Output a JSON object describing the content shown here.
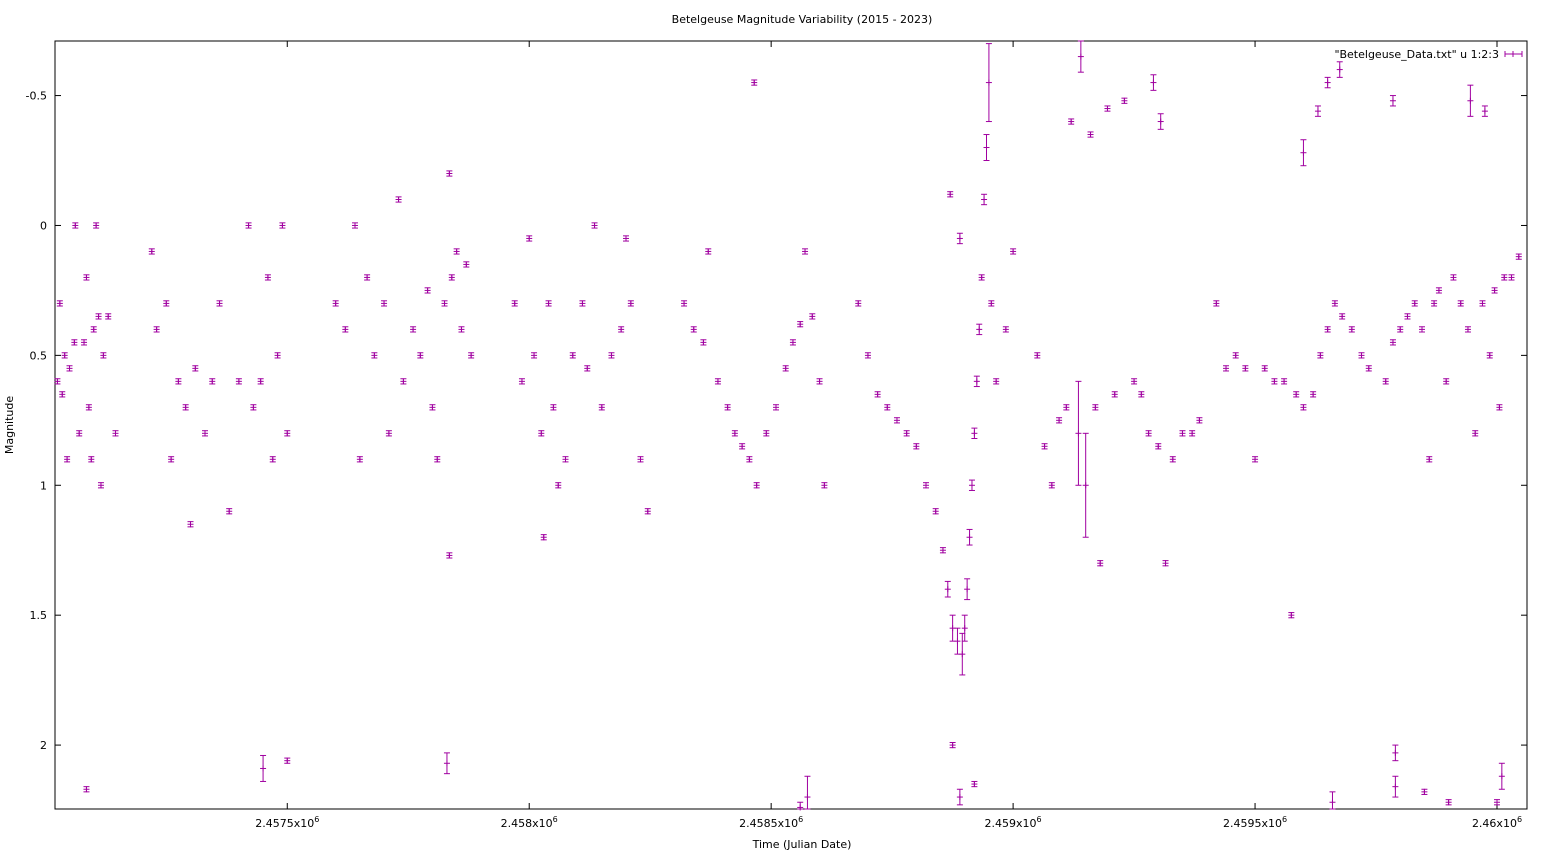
{
  "chart_data": {
    "type": "scatter",
    "title": "Betelgeuse Magnitude Variability (2015 - 2023)",
    "xlabel": "Time (Julian Date)",
    "ylabel": "Magnitude",
    "xlim": [
      2457020,
      2460062
    ],
    "ylim": [
      2.246,
      -0.71
    ],
    "y_reversed": true,
    "grid": false,
    "legend_position": "top-right",
    "color": "#a000a0",
    "x_ticks": [
      {
        "value": 2457500,
        "label": "2.4575x10",
        "exp": "6"
      },
      {
        "value": 2458000,
        "label": "2.458x10",
        "exp": "6"
      },
      {
        "value": 2458500,
        "label": "2.4585x10",
        "exp": "6"
      },
      {
        "value": 2459000,
        "label": "2.459x10",
        "exp": "6"
      },
      {
        "value": 2459500,
        "label": "2.4595x10",
        "exp": "6"
      },
      {
        "value": 2460000,
        "label": "2.46x10",
        "exp": "6"
      }
    ],
    "y_ticks": [
      {
        "value": -0.5,
        "label": "-0.5"
      },
      {
        "value": 0,
        "label": "0"
      },
      {
        "value": 0.5,
        "label": "0.5"
      },
      {
        "value": 1,
        "label": "1"
      },
      {
        "value": 1.5,
        "label": "1.5"
      },
      {
        "value": 2,
        "label": "2"
      }
    ],
    "series": [
      {
        "name": "\"Betelgeuse_Data.txt\" u 1:2:3",
        "points": [
          [
            2457025,
            0.6,
            0.01
          ],
          [
            2457030,
            0.3,
            0.01
          ],
          [
            2457035,
            0.65,
            0.01
          ],
          [
            2457040,
            0.5,
            0.01
          ],
          [
            2457045,
            0.9,
            0.01
          ],
          [
            2457050,
            0.55,
            0.01
          ],
          [
            2457060,
            0.45,
            0.01
          ],
          [
            2457062,
            0.0,
            0.01
          ],
          [
            2457070,
            0.8,
            0.01
          ],
          [
            2457080,
            0.45,
            0.01
          ],
          [
            2457085,
            0.2,
            0.01
          ],
          [
            2457090,
            0.7,
            0.01
          ],
          [
            2457095,
            0.9,
            0.01
          ],
          [
            2457100,
            0.4,
            0.01
          ],
          [
            2457105,
            0.0,
            0.01
          ],
          [
            2457110,
            0.35,
            0.01
          ],
          [
            2457115,
            1.0,
            0.01
          ],
          [
            2457120,
            0.5,
            0.01
          ],
          [
            2457130,
            0.35,
            0.01
          ],
          [
            2457145,
            0.8,
            0.01
          ],
          [
            2457085,
            2.17,
            0.01
          ],
          [
            2457220,
            0.1,
            0.01
          ],
          [
            2457230,
            0.4,
            0.01
          ],
          [
            2457250,
            0.3,
            0.01
          ],
          [
            2457260,
            0.9,
            0.01
          ],
          [
            2457275,
            0.6,
            0.01
          ],
          [
            2457290,
            0.7,
            0.01
          ],
          [
            2457300,
            1.15,
            0.01
          ],
          [
            2457310,
            0.55,
            0.01
          ],
          [
            2457330,
            0.8,
            0.01
          ],
          [
            2457345,
            0.6,
            0.01
          ],
          [
            2457360,
            0.3,
            0.01
          ],
          [
            2457380,
            1.1,
            0.01
          ],
          [
            2457400,
            0.6,
            0.01
          ],
          [
            2457420,
            0.0,
            0.01
          ],
          [
            2457430,
            0.7,
            0.01
          ],
          [
            2457445,
            0.6,
            0.01
          ],
          [
            2457460,
            0.2,
            0.01
          ],
          [
            2457470,
            0.9,
            0.01
          ],
          [
            2457480,
            0.5,
            0.01
          ],
          [
            2457490,
            0.0,
            0.01
          ],
          [
            2457500,
            0.8,
            0.01
          ],
          [
            2457450,
            2.09,
            0.05
          ],
          [
            2457500,
            2.06,
            0.01
          ],
          [
            2457600,
            0.3,
            0.01
          ],
          [
            2457620,
            0.4,
            0.01
          ],
          [
            2457640,
            0.0,
            0.01
          ],
          [
            2457650,
            0.9,
            0.01
          ],
          [
            2457665,
            0.2,
            0.01
          ],
          [
            2457680,
            0.5,
            0.01
          ],
          [
            2457700,
            0.3,
            0.01
          ],
          [
            2457710,
            0.8,
            0.01
          ],
          [
            2457730,
            -0.1,
            0.01
          ],
          [
            2457740,
            0.6,
            0.01
          ],
          [
            2457760,
            0.4,
            0.01
          ],
          [
            2457775,
            0.5,
            0.01
          ],
          [
            2457790,
            0.25,
            0.01
          ],
          [
            2457800,
            0.7,
            0.01
          ],
          [
            2457810,
            0.9,
            0.01
          ],
          [
            2457825,
            0.3,
            0.01
          ],
          [
            2457835,
            -0.2,
            0.01
          ],
          [
            2457840,
            0.2,
            0.01
          ],
          [
            2457850,
            0.1,
            0.01
          ],
          [
            2457860,
            0.4,
            0.01
          ],
          [
            2457870,
            0.15,
            0.01
          ],
          [
            2457880,
            0.5,
            0.01
          ],
          [
            2457835,
            1.27,
            0.01
          ],
          [
            2457830,
            2.07,
            0.04
          ],
          [
            2457970,
            0.3,
            0.01
          ],
          [
            2457985,
            0.6,
            0.01
          ],
          [
            2458000,
            0.05,
            0.01
          ],
          [
            2458010,
            0.5,
            0.01
          ],
          [
            2458025,
            0.8,
            0.01
          ],
          [
            2458040,
            0.3,
            0.01
          ],
          [
            2458050,
            0.7,
            0.01
          ],
          [
            2458060,
            1.0,
            0.01
          ],
          [
            2458075,
            0.9,
            0.01
          ],
          [
            2458090,
            0.5,
            0.01
          ],
          [
            2458110,
            0.3,
            0.01
          ],
          [
            2458120,
            0.55,
            0.01
          ],
          [
            2458135,
            0.0,
            0.01
          ],
          [
            2458150,
            0.7,
            0.01
          ],
          [
            2458170,
            0.5,
            0.01
          ],
          [
            2458190,
            0.4,
            0.01
          ],
          [
            2458200,
            0.05,
            0.01
          ],
          [
            2458210,
            0.3,
            0.01
          ],
          [
            2458230,
            0.9,
            0.01
          ],
          [
            2458245,
            1.1,
            0.01
          ],
          [
            2458030,
            1.2,
            0.01
          ],
          [
            2458320,
            0.3,
            0.01
          ],
          [
            2458340,
            0.4,
            0.01
          ],
          [
            2458360,
            0.45,
            0.01
          ],
          [
            2458370,
            0.1,
            0.01
          ],
          [
            2458390,
            0.6,
            0.01
          ],
          [
            2458410,
            0.7,
            0.01
          ],
          [
            2458425,
            0.8,
            0.01
          ],
          [
            2458440,
            0.85,
            0.01
          ],
          [
            2458455,
            0.9,
            0.01
          ],
          [
            2458465,
            -0.55,
            0.01
          ],
          [
            2458470,
            1.0,
            0.01
          ],
          [
            2458490,
            0.8,
            0.01
          ],
          [
            2458510,
            0.7,
            0.01
          ],
          [
            2458530,
            0.55,
            0.01
          ],
          [
            2458545,
            0.45,
            0.01
          ],
          [
            2458560,
            0.38,
            0.01
          ],
          [
            2458570,
            0.1,
            0.01
          ],
          [
            2458585,
            0.35,
            0.01
          ],
          [
            2458600,
            0.6,
            0.01
          ],
          [
            2458610,
            1.0,
            0.01
          ],
          [
            2458575,
            2.2,
            0.08
          ],
          [
            2458560,
            2.24,
            0.02
          ],
          [
            2458680,
            0.3,
            0.01
          ],
          [
            2458700,
            0.5,
            0.01
          ],
          [
            2458720,
            0.65,
            0.01
          ],
          [
            2458740,
            0.7,
            0.01
          ],
          [
            2458760,
            0.75,
            0.01
          ],
          [
            2458780,
            0.8,
            0.01
          ],
          [
            2458800,
            0.85,
            0.01
          ],
          [
            2458820,
            1.0,
            0.01
          ],
          [
            2458840,
            1.1,
            0.01
          ],
          [
            2458855,
            1.25,
            0.01
          ],
          [
            2458865,
            1.4,
            0.03
          ],
          [
            2458875,
            1.55,
            0.05
          ],
          [
            2458885,
            1.6,
            0.05
          ],
          [
            2458895,
            1.65,
            0.08
          ],
          [
            2458900,
            1.55,
            0.05
          ],
          [
            2458905,
            1.4,
            0.04
          ],
          [
            2458910,
            1.2,
            0.03
          ],
          [
            2458915,
            1.0,
            0.02
          ],
          [
            2458920,
            0.8,
            0.02
          ],
          [
            2458925,
            0.6,
            0.02
          ],
          [
            2458930,
            0.4,
            0.02
          ],
          [
            2458935,
            0.2,
            0.01
          ],
          [
            2458940,
            -0.1,
            0.02
          ],
          [
            2458945,
            -0.3,
            0.05
          ],
          [
            2458950,
            -0.55,
            0.15
          ],
          [
            2458955,
            0.3,
            0.01
          ],
          [
            2458965,
            0.6,
            0.01
          ],
          [
            2458985,
            0.4,
            0.01
          ],
          [
            2459000,
            0.1,
            0.01
          ],
          [
            2458875,
            2.0,
            0.01
          ],
          [
            2458890,
            2.2,
            0.03
          ],
          [
            2458920,
            2.15,
            0.01
          ],
          [
            2458870,
            -0.12,
            0.01
          ],
          [
            2458890,
            0.05,
            0.02
          ],
          [
            2459050,
            0.5,
            0.01
          ],
          [
            2459065,
            0.85,
            0.01
          ],
          [
            2459080,
            1.0,
            0.01
          ],
          [
            2459095,
            0.75,
            0.01
          ],
          [
            2459110,
            0.7,
            0.01
          ],
          [
            2459120,
            -0.4,
            0.01
          ],
          [
            2459135,
            0.8,
            0.2
          ],
          [
            2459150,
            1.0,
            0.2
          ],
          [
            2459160,
            -0.35,
            0.01
          ],
          [
            2459170,
            0.7,
            0.01
          ],
          [
            2459180,
            1.3,
            0.01
          ],
          [
            2459195,
            -0.45,
            0.01
          ],
          [
            2459210,
            0.65,
            0.01
          ],
          [
            2459230,
            -0.48,
            0.01
          ],
          [
            2459250,
            0.6,
            0.01
          ],
          [
            2459265,
            0.65,
            0.01
          ],
          [
            2459280,
            0.8,
            0.01
          ],
          [
            2459290,
            -0.55,
            0.03
          ],
          [
            2459300,
            0.85,
            0.01
          ],
          [
            2459315,
            1.3,
            0.01
          ],
          [
            2459330,
            0.9,
            0.01
          ],
          [
            2459350,
            0.8,
            0.01
          ],
          [
            2459370,
            0.8,
            0.01
          ],
          [
            2459385,
            0.75,
            0.01
          ],
          [
            2459140,
            -0.65,
            0.06
          ],
          [
            2459305,
            -0.4,
            0.03
          ],
          [
            2459420,
            0.3,
            0.01
          ],
          [
            2459440,
            0.55,
            0.01
          ],
          [
            2459460,
            0.5,
            0.01
          ],
          [
            2459480,
            0.55,
            0.01
          ],
          [
            2459500,
            0.9,
            0.01
          ],
          [
            2459520,
            0.55,
            0.01
          ],
          [
            2459540,
            0.6,
            0.01
          ],
          [
            2459560,
            0.6,
            0.01
          ],
          [
            2459575,
            1.5,
            0.01
          ],
          [
            2459585,
            0.65,
            0.01
          ],
          [
            2459600,
            0.7,
            0.01
          ],
          [
            2459620,
            0.65,
            0.01
          ],
          [
            2459635,
            0.5,
            0.01
          ],
          [
            2459650,
            0.4,
            0.01
          ],
          [
            2459665,
            0.3,
            0.01
          ],
          [
            2459680,
            0.35,
            0.01
          ],
          [
            2459700,
            0.4,
            0.01
          ],
          [
            2459720,
            0.5,
            0.01
          ],
          [
            2459735,
            0.55,
            0.01
          ],
          [
            2459600,
            -0.28,
            0.05
          ],
          [
            2459630,
            -0.44,
            0.02
          ],
          [
            2459650,
            -0.55,
            0.02
          ],
          [
            2459675,
            -0.6,
            0.03
          ],
          [
            2459660,
            2.22,
            0.04
          ],
          [
            2459770,
            0.6,
            0.01
          ],
          [
            2459785,
            0.45,
            0.01
          ],
          [
            2459800,
            0.4,
            0.01
          ],
          [
            2459815,
            0.35,
            0.01
          ],
          [
            2459830,
            0.3,
            0.01
          ],
          [
            2459845,
            0.4,
            0.01
          ],
          [
            2459860,
            0.9,
            0.01
          ],
          [
            2459870,
            0.3,
            0.01
          ],
          [
            2459880,
            0.25,
            0.01
          ],
          [
            2459895,
            0.6,
            0.01
          ],
          [
            2459910,
            0.2,
            0.01
          ],
          [
            2459925,
            0.3,
            0.01
          ],
          [
            2459940,
            0.4,
            0.01
          ],
          [
            2459955,
            0.8,
            0.01
          ],
          [
            2459970,
            0.3,
            0.01
          ],
          [
            2459985,
            0.5,
            0.01
          ],
          [
            2459995,
            0.25,
            0.01
          ],
          [
            2460005,
            0.7,
            0.01
          ],
          [
            2460015,
            0.2,
            0.01
          ],
          [
            2460030,
            0.2,
            0.01
          ],
          [
            2460045,
            0.12,
            0.01
          ],
          [
            2459785,
            -0.48,
            0.02
          ],
          [
            2459945,
            -0.48,
            0.06
          ],
          [
            2459975,
            -0.44,
            0.02
          ],
          [
            2459790,
            2.03,
            0.03
          ],
          [
            2459790,
            2.16,
            0.04
          ],
          [
            2459850,
            2.18,
            0.01
          ],
          [
            2459900,
            2.22,
            0.01
          ],
          [
            2460010,
            2.12,
            0.05
          ],
          [
            2460000,
            2.22,
            0.01
          ]
        ]
      }
    ]
  }
}
